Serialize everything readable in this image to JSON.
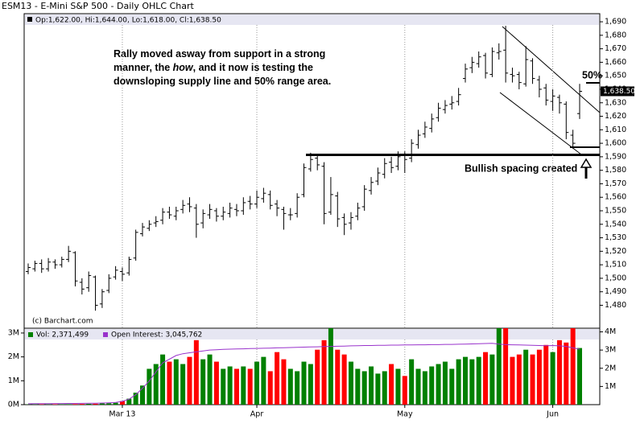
{
  "chart_data": [
    {
      "type": "ohlc",
      "title": "ESM13 - E-Mini S&P 500 - Daily OHLC Chart",
      "info": "Op:1,622.00, Hi:1,644.00, Lo:1,618.00, Cl:1,638.50",
      "credit": "(c) Barchart.com",
      "last_label": "1,638.50",
      "color": "#000000",
      "grid": "x",
      "categories": [
        null,
        null,
        null,
        null,
        null,
        null,
        null,
        null,
        null,
        null,
        null,
        null,
        null,
        null,
        "Mar 13",
        null,
        null,
        null,
        null,
        null,
        null,
        null,
        null,
        null,
        null,
        null,
        null,
        null,
        null,
        null,
        null,
        null,
        null,
        null,
        "Apr",
        null,
        null,
        null,
        null,
        null,
        null,
        null,
        null,
        null,
        null,
        null,
        null,
        null,
        null,
        null,
        null,
        null,
        null,
        null,
        null,
        null,
        "May",
        null,
        null,
        null,
        null,
        null,
        null,
        null,
        null,
        null,
        null,
        null,
        null,
        null,
        null,
        null,
        null,
        null,
        null,
        null,
        null,
        null,
        "Jun",
        null,
        null,
        null,
        null
      ],
      "open": [
        1505,
        1507,
        1511,
        1507,
        1512,
        1510,
        1514,
        1519,
        1497,
        1493,
        1501,
        1481,
        1491,
        1501,
        1505,
        1504,
        1515,
        1533,
        1537,
        1541,
        1543,
        1549,
        1546,
        1551,
        1555,
        1552,
        1541,
        1547,
        1550,
        1546,
        1548,
        1551,
        1550,
        1557,
        1555,
        1559,
        1562,
        1555,
        1551,
        1547,
        1548,
        1562,
        1581,
        1589,
        1583,
        1549,
        1561,
        1545,
        1541,
        1546,
        1553,
        1565,
        1572,
        1577,
        1586,
        1583,
        1591,
        1589,
        1599,
        1607,
        1611,
        1619,
        1625,
        1629,
        1631,
        1648,
        1656,
        1659,
        1665,
        1651,
        1667,
        1669,
        1651,
        1651,
        1644,
        1661,
        1647,
        1641,
        1631,
        1634,
        1629,
        1606,
        1622
      ],
      "high": [
        1511,
        1513,
        1514,
        1515,
        1514,
        1516,
        1524,
        1520,
        1500,
        1505,
        1502,
        1492,
        1503,
        1509,
        1508,
        1516,
        1536,
        1541,
        1543,
        1546,
        1552,
        1553,
        1553,
        1558,
        1560,
        1555,
        1551,
        1555,
        1552,
        1553,
        1556,
        1555,
        1560,
        1561,
        1565,
        1567,
        1565,
        1558,
        1553,
        1552,
        1563,
        1585,
        1593,
        1591,
        1586,
        1575,
        1564,
        1548,
        1549,
        1556,
        1569,
        1575,
        1582,
        1589,
        1590,
        1594,
        1594,
        1603,
        1610,
        1616,
        1622,
        1630,
        1632,
        1635,
        1641,
        1659,
        1664,
        1668,
        1667,
        1671,
        1674,
        1687,
        1656,
        1653,
        1672,
        1663,
        1650,
        1644,
        1640,
        1636,
        1631,
        1610,
        1644
      ],
      "low": [
        1503,
        1505,
        1504,
        1505,
        1507,
        1508,
        1512,
        1494,
        1488,
        1490,
        1476,
        1478,
        1489,
        1499,
        1498,
        1502,
        1513,
        1531,
        1535,
        1538,
        1540,
        1544,
        1543,
        1548,
        1549,
        1530,
        1537,
        1544,
        1542,
        1543,
        1545,
        1546,
        1547,
        1551,
        1552,
        1556,
        1551,
        1546,
        1536,
        1543,
        1545,
        1560,
        1579,
        1580,
        1540,
        1547,
        1538,
        1532,
        1536,
        1543,
        1550,
        1562,
        1569,
        1574,
        1578,
        1580,
        1578,
        1586,
        1596,
        1604,
        1608,
        1616,
        1622,
        1625,
        1628,
        1645,
        1652,
        1656,
        1648,
        1649,
        1662,
        1645,
        1645,
        1640,
        1642,
        1644,
        1634,
        1628,
        1624,
        1622,
        1603,
        1596,
        1618
      ],
      "close": [
        1508,
        1511,
        1507,
        1512,
        1510,
        1514,
        1520,
        1498,
        1492,
        1502,
        1480,
        1490,
        1500,
        1506,
        1503,
        1514,
        1534,
        1538,
        1540,
        1542,
        1549,
        1547,
        1550,
        1554,
        1553,
        1540,
        1548,
        1551,
        1546,
        1549,
        1552,
        1550,
        1556,
        1555,
        1560,
        1563,
        1554,
        1552,
        1548,
        1547,
        1560,
        1582,
        1588,
        1584,
        1548,
        1562,
        1544,
        1540,
        1545,
        1552,
        1566,
        1571,
        1578,
        1585,
        1582,
        1590,
        1588,
        1600,
        1606,
        1612,
        1618,
        1626,
        1628,
        1630,
        1636,
        1655,
        1660,
        1664,
        1652,
        1668,
        1668,
        1652,
        1650,
        1645,
        1662,
        1648,
        1640,
        1632,
        1635,
        1630,
        1608,
        1600,
        1638.5
      ],
      "ylim": [
        1463,
        1696
      ],
      "yticks": [
        {
          "value": 1480,
          "label": "1,480"
        },
        {
          "value": 1490,
          "label": "1,490"
        },
        {
          "value": 1500,
          "label": "1,500"
        },
        {
          "value": 1510,
          "label": "1,510"
        },
        {
          "value": 1520,
          "label": "1,520"
        },
        {
          "value": 1530,
          "label": "1,530"
        },
        {
          "value": 1540,
          "label": "1,540"
        },
        {
          "value": 1550,
          "label": "1,550"
        },
        {
          "value": 1560,
          "label": "1,560"
        },
        {
          "value": 1570,
          "label": "1,570"
        },
        {
          "value": 1580,
          "label": "1,580"
        },
        {
          "value": 1590,
          "label": "1,590"
        },
        {
          "value": 1600,
          "label": "1,600"
        },
        {
          "value": 1610,
          "label": "1,610"
        },
        {
          "value": 1620,
          "label": "1,620"
        },
        {
          "value": 1630,
          "label": "1,630"
        },
        {
          "value": 1640,
          "label": "1,640"
        },
        {
          "value": 1650,
          "label": "1,650"
        },
        {
          "value": 1660,
          "label": "1,660"
        },
        {
          "value": 1670,
          "label": "1,670"
        },
        {
          "value": 1680,
          "label": "1,680"
        },
        {
          "value": 1690,
          "label": "1,690"
        }
      ],
      "annotations": {
        "note": [
          [
            "Rally moved asway from support in a strong"
          ],
          [
            "manner, the ",
            "how",
            ", and it now is testing the"
          ],
          [
            "downsloping supply line and 50% range area."
          ]
        ],
        "fifty": "50%",
        "spacing": "Bullish spacing created"
      }
    },
    {
      "type": "bar",
      "series": [
        {
          "name": "Vol: 2,371,499",
          "up_color": "#008000",
          "down_color": "#ff0000",
          "values": [
            10000,
            12000,
            15000,
            12000,
            18000,
            20000,
            22000,
            25000,
            30000,
            35000,
            40000,
            50000,
            60000,
            80000,
            150000,
            250000,
            500000,
            800000,
            1500000,
            1700000,
            2100000,
            1800000,
            1900000,
            1700000,
            2000000,
            2700000,
            1900000,
            2100000,
            1800000,
            1500000,
            1600000,
            1500000,
            1600000,
            1500000,
            1800000,
            2000000,
            1400000,
            2200000,
            1900000,
            1500000,
            1400000,
            1800000,
            1700000,
            2300000,
            2700000,
            3300000,
            2300000,
            2100000,
            1800000,
            1500000,
            1400000,
            1600000,
            1300000,
            1400000,
            1700000,
            1500000,
            1200000,
            1900000,
            1500000,
            1400000,
            1600000,
            1700000,
            1800000,
            1500000,
            1900000,
            2000000,
            1900000,
            2000000,
            2200000,
            2100000,
            3400000,
            3300000,
            2000000,
            2100000,
            2300000,
            2100000,
            2300000,
            2500000,
            2200000,
            2700000,
            2600000,
            3200000,
            2371499
          ]
        },
        {
          "name": "Open Interest: 3,045,762",
          "type": "line",
          "axis": "y2",
          "color": "#9933cc",
          "values": [
            50000,
            52000,
            55000,
            57000,
            60000,
            62000,
            65000,
            68000,
            70000,
            75000,
            80000,
            90000,
            100000,
            120000,
            180000,
            300000,
            550000,
            900000,
            1300000,
            1800000,
            2300000,
            2500000,
            2700000,
            2800000,
            2850000,
            2900000,
            2950000,
            3000000,
            3020000,
            3040000,
            3050000,
            3060000,
            3070000,
            3080000,
            3090000,
            3100000,
            3110000,
            3120000,
            3130000,
            3140000,
            3150000,
            3160000,
            3170000,
            3180000,
            3190000,
            3200000,
            3210000,
            3220000,
            3230000,
            3240000,
            3250000,
            3250000,
            3260000,
            3260000,
            3270000,
            3270000,
            3280000,
            3280000,
            3290000,
            3290000,
            3300000,
            3300000,
            3310000,
            3310000,
            3320000,
            3330000,
            3340000,
            3350000,
            3360000,
            3370000,
            3330000,
            3300000,
            3290000,
            3280000,
            3270000,
            3260000,
            3250000,
            3240000,
            3250000,
            3230000,
            3200000,
            3120000,
            3045762
          ]
        }
      ],
      "ylim": [
        0,
        3200000
      ],
      "yticks": [
        {
          "value": 0,
          "label": "0M"
        },
        {
          "value": 1000000,
          "label": "1M"
        },
        {
          "value": 2000000,
          "label": "2M"
        },
        {
          "value": 3000000,
          "label": "3M"
        }
      ],
      "y2lim": [
        0,
        4200000
      ],
      "y2ticks": [
        {
          "value": 1000000,
          "label": "1M"
        },
        {
          "value": 2000000,
          "label": "2M"
        },
        {
          "value": 3000000,
          "label": "3M"
        },
        {
          "value": 4000000,
          "label": "4M"
        }
      ]
    }
  ]
}
